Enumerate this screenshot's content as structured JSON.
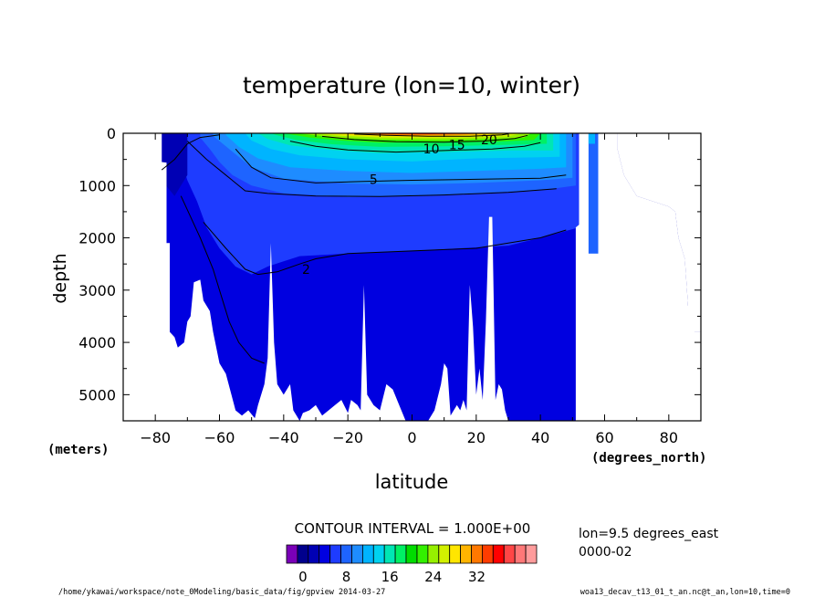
{
  "chart_data": {
    "type": "heatmap",
    "title": "temperature (lon=10, winter)",
    "xlabel": "latitude",
    "ylabel": "depth",
    "x_unit_label": "(degrees_north)",
    "y_unit_label": "(meters)",
    "xlim": [
      -90,
      90
    ],
    "ylim": [
      5500,
      0
    ],
    "x_ticks": [
      -80,
      -60,
      -40,
      -20,
      0,
      20,
      40,
      60,
      80
    ],
    "x_tick_labels": [
      "−80",
      "−60",
      "−40",
      "−20",
      "0",
      "20",
      "40",
      "60",
      "80"
    ],
    "y_ticks": [
      0,
      1000,
      2000,
      3000,
      4000,
      5000
    ],
    "y_tick_labels": [
      "0",
      "1000",
      "2000",
      "3000",
      "4000",
      "5000"
    ],
    "contour_labels": [
      {
        "text": "20",
        "lat": 24,
        "depth": 120
      },
      {
        "text": "15",
        "lat": 14,
        "depth": 220
      },
      {
        "text": "10",
        "lat": 6,
        "depth": 300
      },
      {
        "text": "5",
        "lat": -12,
        "depth": 880
      },
      {
        "text": "2",
        "lat": -33,
        "depth": 2600
      }
    ],
    "contour_interval_text": "CONTOUR INTERVAL = 1.000E+00",
    "info": [
      "lon=9.5 degrees_east",
      "0000-02"
    ],
    "colorbar": {
      "tick_labels": [
        "0",
        "8",
        "16",
        "24",
        "32"
      ],
      "tick_values": [
        0,
        8,
        16,
        24,
        32
      ],
      "colors": [
        "#7a00b8",
        "#00008c",
        "#0000b4",
        "#0000e0",
        "#1e3cff",
        "#1e64ff",
        "#1e8cff",
        "#00b4ff",
        "#00d2f0",
        "#00e6b4",
        "#00f064",
        "#00dc00",
        "#32f000",
        "#96f000",
        "#d2f000",
        "#ffe600",
        "#ffb400",
        "#ff7800",
        "#ff3c00",
        "#ff0000",
        "#ff4646",
        "#ff7878",
        "#ff9c9c"
      ]
    },
    "footer_left": "/home/ykawai/workspace/note_0Modeling/basic_data/fig/gpview  2014-03-27",
    "footer_right": "woa13_decav_t13_01_t_an.nc@t_an,lon=10,time=0"
  }
}
